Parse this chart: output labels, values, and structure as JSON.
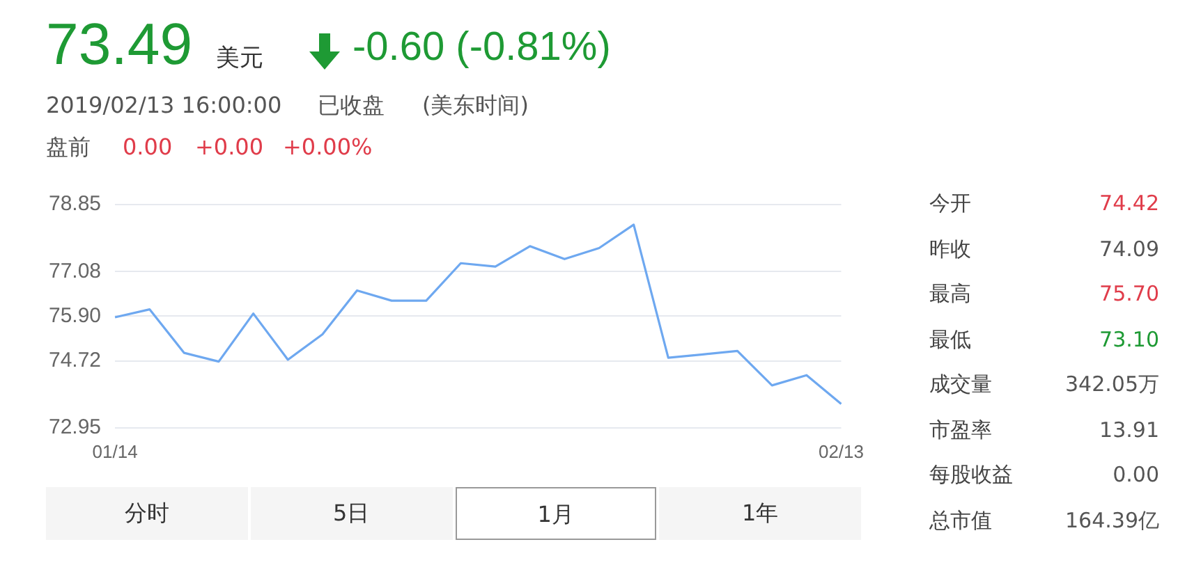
{
  "chart_data": {
    "type": "line",
    "title": "73.49",
    "categories": [
      "01/14",
      null,
      null,
      null,
      null,
      null,
      null,
      null,
      null,
      null,
      null,
      null,
      null,
      null,
      null,
      null,
      null,
      null,
      null,
      null,
      null,
      "02/13"
    ],
    "series": [
      {
        "color": "#6ea8f0",
        "values": [
          75.87,
          76.08,
          74.93,
          74.7,
          75.97,
          74.75,
          75.42,
          76.58,
          76.31,
          76.31,
          77.3,
          77.21,
          77.75,
          77.41,
          77.7,
          78.32,
          74.8,
          74.89,
          74.98,
          74.07,
          74.34,
          73.58
        ]
      }
    ],
    "ylim": [
      72.95,
      78.85
    ],
    "yticks": [
      72.95,
      74.72,
      {
        "value": 75.9,
        "label": "75.90"
      },
      77.08,
      78.85
    ],
    "grid": "y",
    "marker": "none",
    "line_style": "solid",
    "legend": false,
    "annotations": [
      "美元",
      "-0.60 (-0.81%)",
      "2019/02/13 16:00:00",
      "已收盘",
      "(美东时间)",
      "盘前",
      "0.00",
      "+0.00",
      "+0.00%",
      "今开",
      "74.42",
      "昨收",
      "74.09",
      "最高",
      "75.70",
      "最低",
      "73.10",
      "成交量",
      "342.05万",
      "市盈率",
      "13.91",
      "每股收益",
      "0.00",
      "总市值",
      "164.39亿",
      "分时",
      "5日",
      "1月",
      "1年"
    ]
  }
}
